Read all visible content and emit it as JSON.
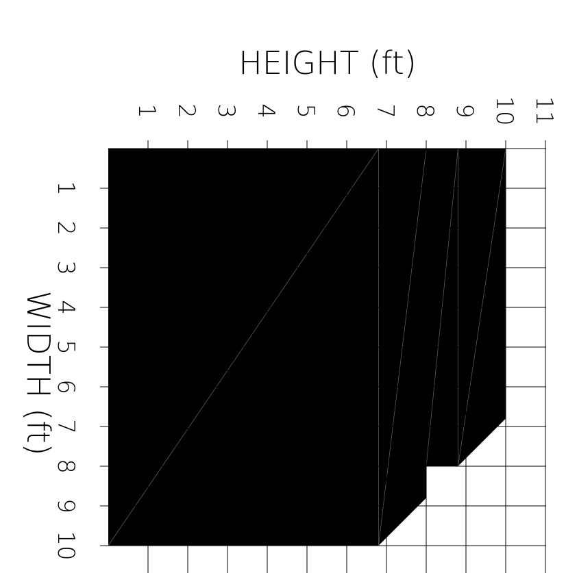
{
  "figure": {
    "height_axis_title": "HEIGHT (ft)",
    "width_axis_title": "WIDTH (ft)",
    "height_ticks": [
      "1",
      "2",
      "3",
      "4",
      "5",
      "6",
      "7",
      "8",
      "9",
      "10",
      "11"
    ],
    "width_ticks": [
      "1",
      "2",
      "3",
      "4",
      "5",
      "6",
      "7",
      "8",
      "9",
      "10"
    ],
    "colors": {
      "fill": "#000000",
      "grid": "#000000",
      "seam": "#5a5a5a",
      "background": "#ffffff"
    }
  },
  "chart_data": {
    "type": "area",
    "height_range": [
      0,
      11
    ],
    "width_range": [
      0,
      10
    ],
    "grid": true,
    "filled_regions": [
      {
        "segment": 1,
        "height_from": 0,
        "height_to": 6.8,
        "polygon": [
          [
            0,
            0
          ],
          [
            6.8,
            0
          ],
          [
            6.8,
            10
          ],
          [
            0,
            10
          ]
        ]
      },
      {
        "segment": 2,
        "height_from": 6.8,
        "height_to": 10,
        "polygon": [
          [
            6.8,
            0
          ],
          [
            10,
            0
          ],
          [
            10,
            6.8
          ],
          [
            8.8,
            8
          ],
          [
            8,
            8
          ],
          [
            8,
            8.8
          ],
          [
            6.8,
            10
          ]
        ]
      }
    ],
    "seam_lines": [
      [
        [
          0,
          10
        ],
        [
          6.8,
          0
        ]
      ],
      [
        [
          6.8,
          0
        ],
        [
          6.8,
          10
        ]
      ],
      [
        [
          6.8,
          10
        ],
        [
          8,
          0
        ]
      ],
      [
        [
          8,
          0
        ],
        [
          8,
          8
        ]
      ],
      [
        [
          8,
          8
        ],
        [
          8.8,
          0
        ]
      ],
      [
        [
          8.8,
          0
        ],
        [
          8.8,
          8
        ]
      ],
      [
        [
          8.8,
          8
        ],
        [
          10,
          0
        ]
      ]
    ]
  }
}
